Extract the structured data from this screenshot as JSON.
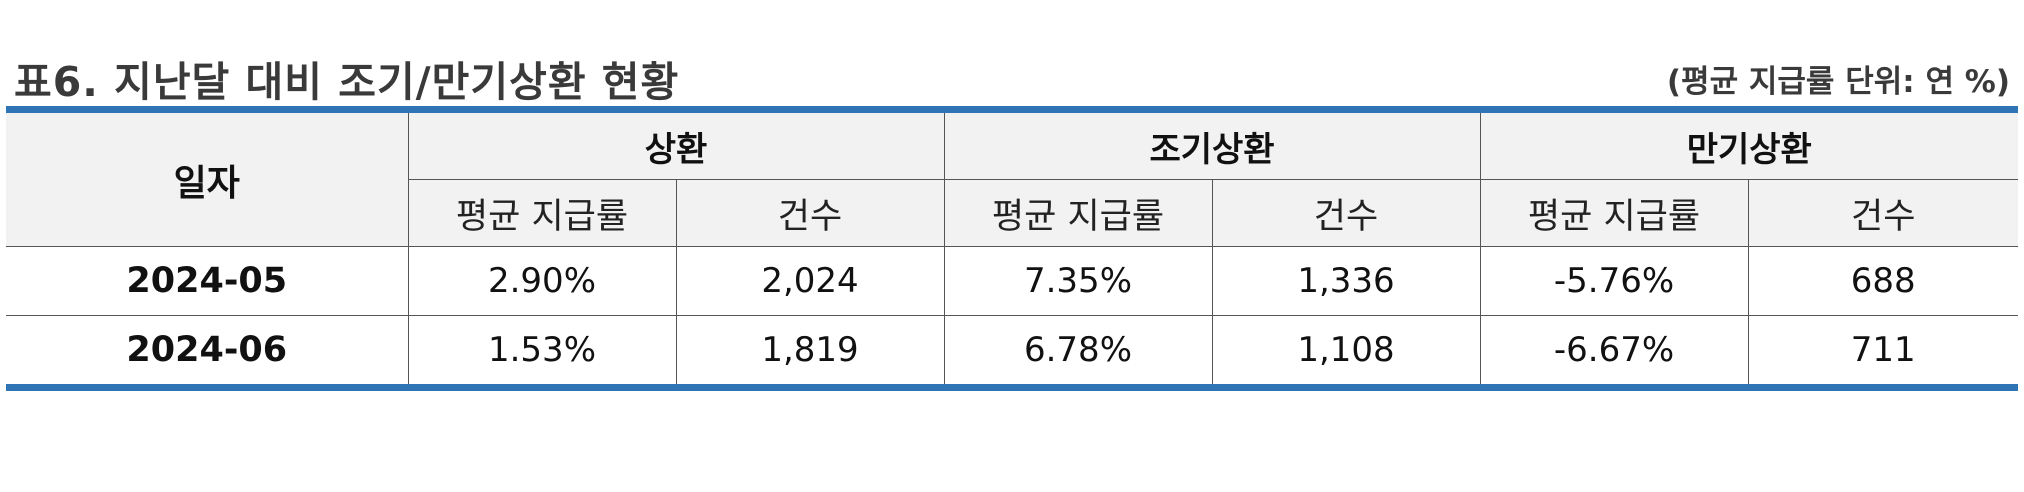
{
  "title": "표6. 지난달 대비 조기/만기상환 현황",
  "unit_note": "(평균 지급률 단위: 연 %)",
  "table": {
    "date_header": "일자",
    "groups": [
      "상환",
      "조기상환",
      "만기상환"
    ],
    "sub_headers": [
      "평균 지급률",
      "건수",
      "평균 지급률",
      "건수",
      "평균 지급률",
      "건수"
    ],
    "rows": [
      {
        "date": "2024-05",
        "cells": [
          "2.90%",
          "2,024",
          "7.35%",
          "1,336",
          "-5.76%",
          "688"
        ]
      },
      {
        "date": "2024-06",
        "cells": [
          "1.53%",
          "1,819",
          "6.78%",
          "1,108",
          "-6.67%",
          "711"
        ]
      }
    ]
  },
  "colors": {
    "accent_border": "#2f74b5",
    "header_background": "#f2f2f2"
  }
}
